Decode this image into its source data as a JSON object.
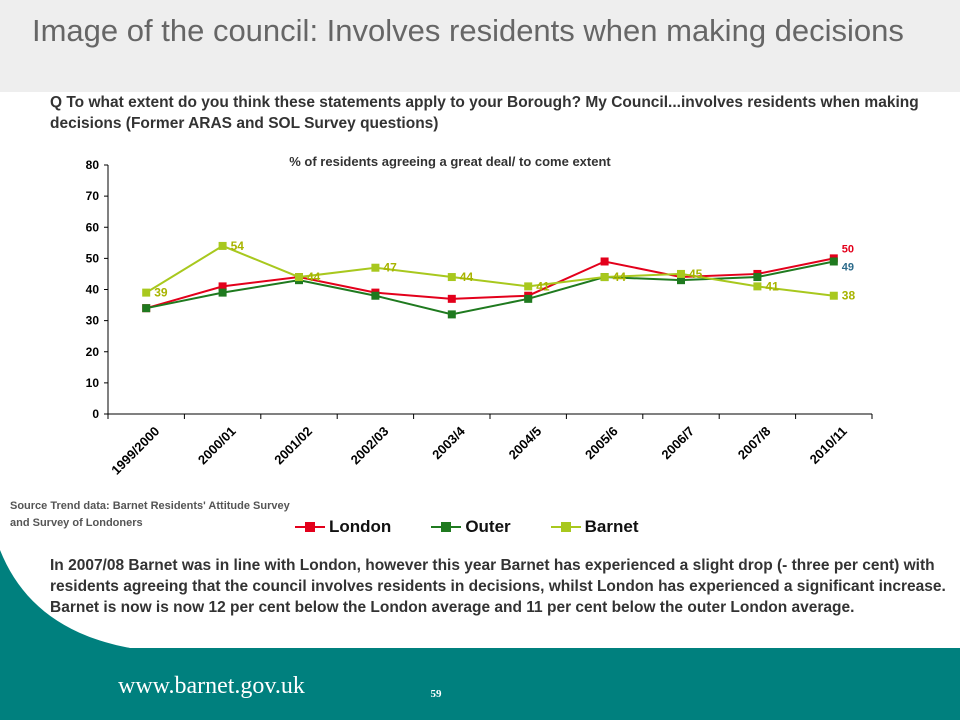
{
  "slide": {
    "title": "Image of the council: Involves residents when making decisions",
    "question": "Q To what extent do you think these statements apply to your Borough? My Council...involves residents when making decisions (Former ARAS and SOL Survey questions)",
    "source": "Source Trend data: Barnet Residents' Attitude Survey and Survey of Londoners",
    "summary": "In 2007/08 Barnet was in line with London, however this year Barnet has experienced a slight drop (- three per cent) with residents agreeing that the council involves residents in decisions, whilst London has experienced a significant increase. Barnet is now is now 12 per cent below the London average and 11 per cent below the outer London average.",
    "page_number": "59",
    "website": "www.barnet.gov.uk",
    "colors": {
      "footer": "#00807e",
      "title_bg": "#eeeeee"
    }
  },
  "chart_data": {
    "type": "line",
    "title": "% of residents agreeing a great deal/ to come extent",
    "categories": [
      "1999/2000",
      "2000/01",
      "2001/02",
      "2002/03",
      "2003/4",
      "2004/5",
      "2005/6",
      "2006/7",
      "2007/8",
      "2010/11"
    ],
    "ylim": [
      0,
      80
    ],
    "yticks": [
      0,
      10,
      20,
      30,
      40,
      50,
      60,
      70,
      80
    ],
    "legend_position": "bottom",
    "series": [
      {
        "name": "London",
        "color": "#e3001b",
        "marker": "square",
        "values": [
          34,
          41,
          44,
          39,
          37,
          38,
          49,
          44,
          45,
          50
        ],
        "labels": [
          null,
          null,
          null,
          null,
          null,
          null,
          null,
          null,
          null,
          "50"
        ]
      },
      {
        "name": "Outer",
        "color": "#1f7a1f",
        "marker": "square",
        "values": [
          34,
          39,
          43,
          38,
          32,
          37,
          44,
          43,
          44,
          49
        ],
        "labels": [
          null,
          null,
          null,
          null,
          null,
          null,
          null,
          null,
          null,
          "49"
        ]
      },
      {
        "name": "Barnet",
        "color": "#a8c81e",
        "marker": "square",
        "values": [
          39,
          54,
          44,
          47,
          44,
          41,
          44,
          45,
          41,
          38
        ],
        "labels": [
          "39",
          "54",
          "44",
          "47",
          "44",
          "41",
          "44",
          "45",
          "41",
          "38"
        ]
      }
    ],
    "label_colors": {
      "London": "#e3001b",
      "Outer": "#2b6a8a",
      "Barnet": "#a8b400"
    }
  }
}
